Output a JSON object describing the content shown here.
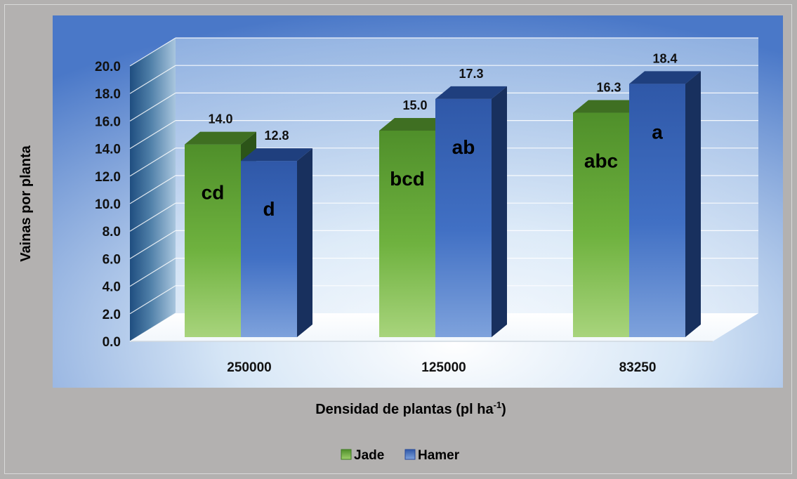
{
  "chart_data": {
    "type": "bar",
    "categories": [
      "250000",
      "125000",
      "83250"
    ],
    "series": [
      {
        "name": "Jade",
        "values": [
          14.0,
          15.0,
          16.3
        ],
        "labels": [
          "14.0",
          "15.0",
          "16.3"
        ],
        "letters": [
          "cd",
          "bcd",
          "abc"
        ],
        "color": "#5ba532"
      },
      {
        "name": "Hamer",
        "values": [
          12.8,
          17.3,
          18.4
        ],
        "labels": [
          "12.8",
          "17.3",
          "18.4"
        ],
        "letters": [
          "d",
          "ab",
          "a"
        ],
        "color": "#3a62b8"
      }
    ],
    "y_ticks": [
      "0.0",
      "2.0",
      "4.0",
      "6.0",
      "8.0",
      "10.0",
      "12.0",
      "14.0",
      "16.0",
      "18.0",
      "20.0"
    ],
    "ylim": [
      0,
      20
    ],
    "ylabel": "Vainas por planta",
    "xlabel_main": "Densidad de plantas (pl ha",
    "xlabel_sup": "-1",
    "xlabel_close": ")",
    "grid": true,
    "legend_position": "bottom",
    "style": "3d-clustered-column"
  }
}
